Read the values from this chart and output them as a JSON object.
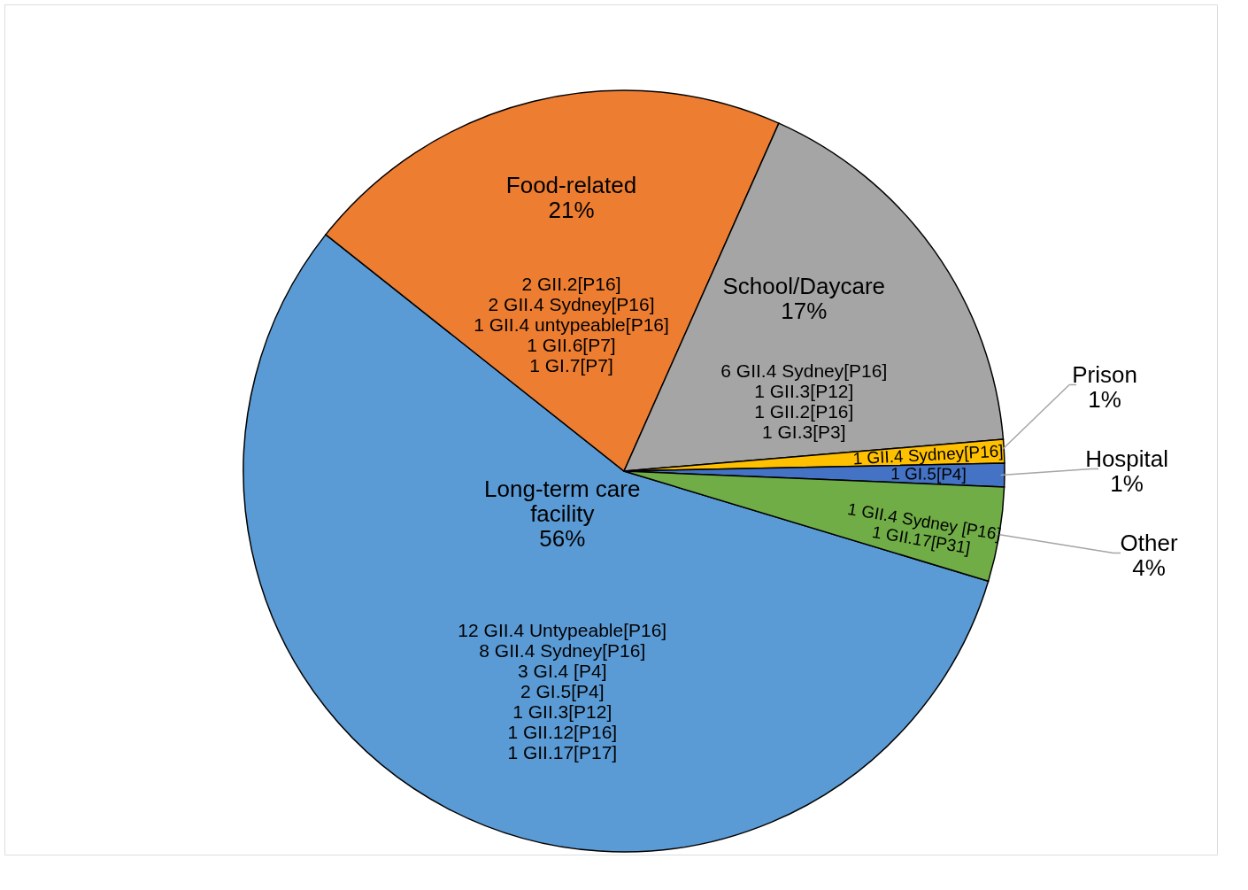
{
  "chart_data": {
    "type": "pie",
    "categories": [
      "Long-term care facility",
      "Food-related",
      "School/Daycare",
      "Prison",
      "Hospital",
      "Other"
    ],
    "values": [
      56,
      21,
      17,
      1,
      1,
      4
    ],
    "colors": [
      "#5b9bd5",
      "#ed7d31",
      "#a5a5a5",
      "#ffc000",
      "#4472c4",
      "#70ad47"
    ],
    "value_labels": [
      "56%",
      "21%",
      "17%",
      "1%",
      "1%",
      "4%"
    ],
    "annotations": [
      {
        "text": "12 GII.4 Untypeable[P16]\n8 GII.4 Sydney[P16]\n3 GI.4 [P4]\n2 GI.5[P4]\n1 GII.3[P12]\n1 GII.12[P16]\n1 GII.17[P17]",
        "x": "Long-term care facility"
      },
      {
        "text": "2 GII.2[P16]\n2 GII.4 Sydney[P16]\n1 GII.4 untypeable[P16]\n1 GII.6[P7]\n1 GI.7[P7]",
        "x": "Food-related"
      },
      {
        "text": "6 GII.4 Sydney[P16]\n1 GII.3[P12]\n1 GII.2[P16]\n1 GI.3[P3]",
        "x": "School/Daycare"
      },
      {
        "text": "1 GII.4 Sydney[P16]",
        "x": "Prison"
      },
      {
        "text": "1 GI.5[P4]",
        "x": "Hospital"
      },
      {
        "text": "1 GII.4 Sydney [P16]\n1 GII.17[P31]",
        "x": "Other"
      }
    ]
  }
}
